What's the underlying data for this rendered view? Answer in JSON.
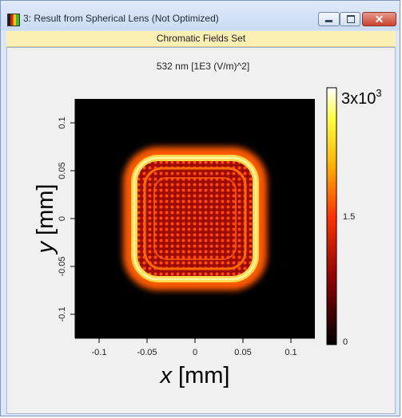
{
  "window": {
    "title": "3: Result from Spherical Lens (Not Optimized)",
    "subtitle": "Chromatic Fields Set",
    "icons": [
      "app-icon",
      "minimize-icon",
      "maximize-icon",
      "close-icon"
    ]
  },
  "plot": {
    "header": "532 nm  [1E3 (V/m)^2]",
    "xlabel_var": "x",
    "xlabel_unit": "[mm]",
    "ylabel_var": "y",
    "ylabel_unit": "[mm]",
    "x_ticks": [
      "-0.1",
      "-0.05",
      "0",
      "0.05",
      "0.1"
    ],
    "y_ticks": [
      "0.1",
      "0.05",
      "0",
      "-0.05",
      "-0.1"
    ],
    "colorbar_top_base": "3x10",
    "colorbar_top_exp": "3",
    "colorbar_mid": "1.5",
    "colorbar_bottom": "0"
  },
  "chart_data": {
    "type": "heatmap",
    "title": "532 nm  [1E3 (V/m)^2]",
    "xlabel": "x [mm]",
    "ylabel": "y [mm]",
    "xlim": [
      -0.125,
      0.125
    ],
    "ylim": [
      -0.125,
      0.125
    ],
    "color_range": [
      0,
      3000
    ],
    "colormap": [
      "#000000",
      "#8b0000",
      "#ff3300",
      "#ffb300",
      "#ffff40",
      "#ffffff"
    ],
    "feature": "square intensity aperture with bright edges and interference ripples, half-width ~0.06 mm"
  }
}
